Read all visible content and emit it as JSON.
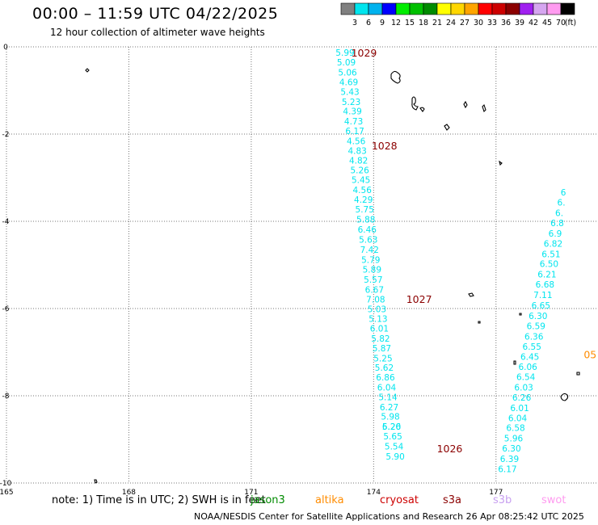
{
  "header": {
    "title": "00:00 – 11:59 UTC 04/22/2025",
    "subtitle": "12 hour collection of altimeter wave heights"
  },
  "colorbar": {
    "labels": [
      "3",
      "6",
      "9",
      "12",
      "15",
      "18",
      "21",
      "24",
      "27",
      "30",
      "33",
      "36",
      "39",
      "42",
      "45",
      "70"
    ],
    "unit": "(ft)",
    "colors": [
      "#808080",
      "#00e5ee",
      "#00b2ee",
      "#0000ff",
      "#00ee00",
      "#00c000",
      "#008b00",
      "#ffff00",
      "#ffd700",
      "#ffa500",
      "#ff0000",
      "#cd0000",
      "#8b0000",
      "#a020f0",
      "#d6a6f0",
      "#ff9bf0",
      "#000000"
    ]
  },
  "footer": {
    "note": "note: 1) Time is in UTC; 2) SWH is in feet",
    "credit": "NOAA/NESDIS Center for Satellite Applications and Research   26 Apr 08:25:42 UTC 2025"
  },
  "satellites": [
    {
      "name": "jason3",
      "color": "#008b00"
    },
    {
      "name": "altika",
      "color": "#ff8c00"
    },
    {
      "name": "cryosat",
      "color": "#cd0000"
    },
    {
      "name": "s3a",
      "color": "#8b0000"
    },
    {
      "name": "s3b",
      "color": "#c8a0f0"
    },
    {
      "name": "swot",
      "color": "#ff9bf0"
    }
  ],
  "chart_data": {
    "type": "scatter",
    "xlim": [
      165,
      179.5
    ],
    "ylim": [
      -10,
      0
    ],
    "x_ticks": [
      165,
      168,
      171,
      174,
      177
    ],
    "y_ticks": [
      0,
      -2,
      -4,
      -6,
      -8,
      -10
    ],
    "grid": true,
    "series": [
      {
        "color": "#00e5ee",
        "points": [
          {
            "x": 173.3,
            "y": -0.2,
            "label": "5.99"
          },
          {
            "x": 173.33,
            "y": -0.43,
            "label": "5.09"
          },
          {
            "x": 173.36,
            "y": -0.66,
            "label": "5.06"
          },
          {
            "x": 173.39,
            "y": -0.88,
            "label": "4.69"
          },
          {
            "x": 173.42,
            "y": -1.1,
            "label": "5.43"
          },
          {
            "x": 173.45,
            "y": -1.33,
            "label": "5.23"
          },
          {
            "x": 173.48,
            "y": -1.55,
            "label": "4.39"
          },
          {
            "x": 173.51,
            "y": -1.78,
            "label": "4.73"
          },
          {
            "x": 173.54,
            "y": -2.0,
            "label": "6.17"
          },
          {
            "x": 173.57,
            "y": -2.23,
            "label": "4.56"
          },
          {
            "x": 173.6,
            "y": -2.45,
            "label": "4.83"
          },
          {
            "x": 173.63,
            "y": -2.68,
            "label": "4.82"
          },
          {
            "x": 173.66,
            "y": -2.9,
            "label": "5.26"
          },
          {
            "x": 173.69,
            "y": -3.12,
            "label": "5.45"
          },
          {
            "x": 173.72,
            "y": -3.35,
            "label": "4.56"
          },
          {
            "x": 173.75,
            "y": -3.57,
            "label": "4.29"
          },
          {
            "x": 173.78,
            "y": -3.8,
            "label": "5.75"
          },
          {
            "x": 173.81,
            "y": -4.03,
            "label": "5.88"
          },
          {
            "x": 173.84,
            "y": -4.26,
            "label": "6.46"
          },
          {
            "x": 173.87,
            "y": -4.49,
            "label": "5.63"
          },
          {
            "x": 173.9,
            "y": -4.72,
            "label": "7.42"
          },
          {
            "x": 173.93,
            "y": -4.95,
            "label": "5.79"
          },
          {
            "x": 173.96,
            "y": -5.18,
            "label": "5.89"
          },
          {
            "x": 173.99,
            "y": -5.41,
            "label": "5.57"
          },
          {
            "x": 174.02,
            "y": -5.64,
            "label": "6.67"
          },
          {
            "x": 174.05,
            "y": -5.86,
            "label": "7.08"
          },
          {
            "x": 174.08,
            "y": -6.08,
            "label": "5.03"
          },
          {
            "x": 174.11,
            "y": -6.31,
            "label": "5.13"
          },
          {
            "x": 174.14,
            "y": -6.53,
            "label": "6.01"
          },
          {
            "x": 174.17,
            "y": -6.76,
            "label": "5.82"
          },
          {
            "x": 174.2,
            "y": -6.98,
            "label": "5.87"
          },
          {
            "x": 174.23,
            "y": -7.21,
            "label": "5.25"
          },
          {
            "x": 174.26,
            "y": -7.43,
            "label": "5.62"
          },
          {
            "x": 174.29,
            "y": -7.65,
            "label": "6.86"
          },
          {
            "x": 174.32,
            "y": -7.88,
            "label": "6.04"
          },
          {
            "x": 174.35,
            "y": -8.1,
            "label": "5.14"
          },
          {
            "x": 174.38,
            "y": -8.33,
            "label": "6.27"
          },
          {
            "x": 174.41,
            "y": -8.55,
            "label": "5.98"
          },
          {
            "x": 174.44,
            "y": -8.78,
            "label": "5.26"
          },
          {
            "x": 174.44,
            "y": -8.78,
            "label": "6.20"
          },
          {
            "x": 174.47,
            "y": -9.0,
            "label": "5.65"
          },
          {
            "x": 174.5,
            "y": -9.23,
            "label": "5.54"
          },
          {
            "x": 174.53,
            "y": -9.46,
            "label": "5.90"
          }
        ]
      },
      {
        "color": "#00e5ee",
        "points": [
          {
            "x": 178.1,
            "y": -6.0,
            "label": "6.65"
          },
          {
            "x": 178.03,
            "y": -6.24,
            "label": "6.30"
          },
          {
            "x": 177.98,
            "y": -6.47,
            "label": "6.59"
          },
          {
            "x": 177.93,
            "y": -6.71,
            "label": "6.36"
          },
          {
            "x": 177.88,
            "y": -6.94,
            "label": "6.55"
          },
          {
            "x": 177.83,
            "y": -7.18,
            "label": "6.45"
          },
          {
            "x": 177.78,
            "y": -7.41,
            "label": "6.06"
          },
          {
            "x": 177.73,
            "y": -7.64,
            "label": "6.54"
          },
          {
            "x": 177.68,
            "y": -7.88,
            "label": "6.03"
          },
          {
            "x": 177.63,
            "y": -8.11,
            "label": "6.26"
          },
          {
            "x": 177.58,
            "y": -8.35,
            "label": "6.01"
          },
          {
            "x": 177.53,
            "y": -8.58,
            "label": "6.04"
          },
          {
            "x": 177.48,
            "y": -8.81,
            "label": "6.58"
          },
          {
            "x": 177.43,
            "y": -9.05,
            "label": "5.96"
          },
          {
            "x": 177.38,
            "y": -9.28,
            "label": "6.30"
          },
          {
            "x": 177.33,
            "y": -9.52,
            "label": "6.39"
          },
          {
            "x": 177.28,
            "y": -9.75,
            "label": "6.17"
          },
          {
            "x": 178.15,
            "y": -5.76,
            "label": "7.11"
          },
          {
            "x": 178.2,
            "y": -5.52,
            "label": "6.68"
          },
          {
            "x": 178.25,
            "y": -5.29,
            "label": "6.21"
          },
          {
            "x": 178.3,
            "y": -5.05,
            "label": "6.50"
          },
          {
            "x": 178.35,
            "y": -4.82,
            "label": "6.51"
          },
          {
            "x": 178.4,
            "y": -4.58,
            "label": "6.82"
          },
          {
            "x": 178.45,
            "y": -4.35,
            "label": "6.9"
          },
          {
            "x": 178.5,
            "y": -4.11,
            "label": "6.8"
          },
          {
            "x": 178.55,
            "y": -3.88,
            "label": "6."
          },
          {
            "x": 178.6,
            "y": -3.64,
            "label": "6."
          },
          {
            "x": 178.65,
            "y": -3.41,
            "label": "6"
          }
        ]
      }
    ],
    "pressure_labels": [
      {
        "label": "1029",
        "x": 173.45,
        "y": -0.22
      },
      {
        "label": "1028",
        "x": 173.95,
        "y": -2.35
      },
      {
        "label": "1027",
        "x": 174.8,
        "y": -5.87
      },
      {
        "label": "1026",
        "x": 175.55,
        "y": -9.3
      }
    ],
    "edge_labels": [
      {
        "label": "05",
        "x": 179.15,
        "y": -7.14,
        "color": "#ff8c00"
      }
    ]
  }
}
